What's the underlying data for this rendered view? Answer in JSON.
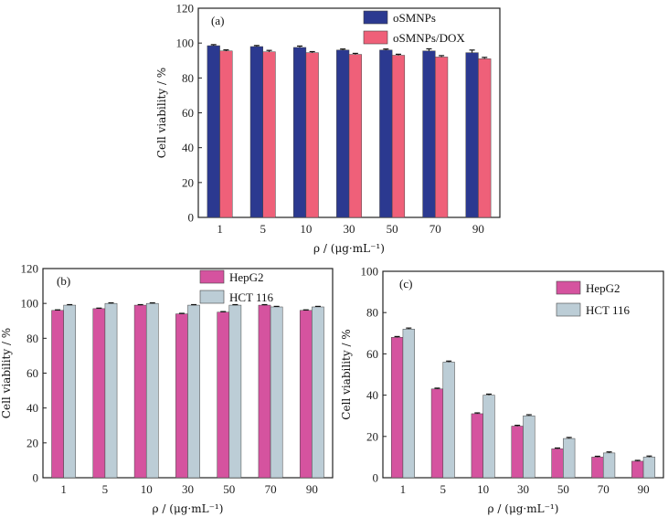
{
  "chart_data": [
    {
      "type": "bar",
      "panel_label": "(a)",
      "categories": [
        "1",
        "5",
        "10",
        "30",
        "50",
        "70",
        "90"
      ],
      "ylabel": "Cell viability / %",
      "xlabel": "ρ / (μg·mL⁻¹)",
      "ylim": [
        0,
        120
      ],
      "yticks": [
        0,
        20,
        40,
        60,
        80,
        100,
        120
      ],
      "legend_position": "top-right",
      "series": [
        {
          "name": "oSMNPs",
          "color": "#2b3990",
          "values": [
            98.5,
            98,
            97.5,
            96,
            96,
            95.5,
            94.5
          ],
          "errors": [
            0.6,
            0.6,
            0.8,
            0.6,
            0.6,
            1.2,
            1.5
          ]
        },
        {
          "name": "oSMNPs/DOX",
          "color": "#ef6079",
          "values": [
            95.5,
            95,
            94.5,
            93.5,
            93,
            92,
            91
          ],
          "errors": [
            0.6,
            0.8,
            0.6,
            0.6,
            0.6,
            0.8,
            0.8
          ]
        }
      ]
    },
    {
      "type": "bar",
      "panel_label": "(b)",
      "categories": [
        "1",
        "5",
        "10",
        "30",
        "50",
        "70",
        "90"
      ],
      "ylabel": "Cell viability / %",
      "xlabel": "ρ / (μg·mL⁻¹)",
      "ylim": [
        0,
        120
      ],
      "yticks": [
        0,
        20,
        40,
        60,
        80,
        100,
        120
      ],
      "legend_position": "top-right",
      "series": [
        {
          "name": "HepG2",
          "color": "#d5539f",
          "values": [
            96,
            97,
            99,
            94,
            95,
            99,
            96
          ],
          "errors": [
            0.3,
            0.3,
            0.3,
            0.3,
            0.3,
            0.3,
            0.3
          ]
        },
        {
          "name": "HCT 116",
          "color": "#bccdd6",
          "values": [
            99,
            100,
            100,
            99,
            99,
            98,
            98
          ],
          "errors": [
            0.3,
            0.3,
            0.3,
            0.3,
            0.3,
            0.3,
            0.3
          ]
        }
      ]
    },
    {
      "type": "bar",
      "panel_label": "(c)",
      "categories": [
        "1",
        "5",
        "10",
        "30",
        "50",
        "70",
        "90"
      ],
      "ylabel": "Cell viability / %",
      "xlabel": "ρ / (μg·mL⁻¹)",
      "ylim": [
        0,
        100
      ],
      "yticks": [
        0,
        20,
        40,
        60,
        80,
        100
      ],
      "legend_position": "top-right",
      "series": [
        {
          "name": "HepG2",
          "color": "#d5539f",
          "values": [
            68,
            43,
            31,
            25,
            14,
            10,
            8
          ],
          "errors": [
            0.4,
            0.4,
            0.4,
            0.4,
            0.4,
            0.4,
            0.4
          ]
        },
        {
          "name": "HCT 116",
          "color": "#bccdd6",
          "values": [
            72,
            56,
            40,
            30,
            19,
            12,
            10
          ],
          "errors": [
            0.5,
            0.5,
            0.5,
            0.5,
            0.5,
            0.5,
            0.5
          ]
        }
      ]
    }
  ]
}
